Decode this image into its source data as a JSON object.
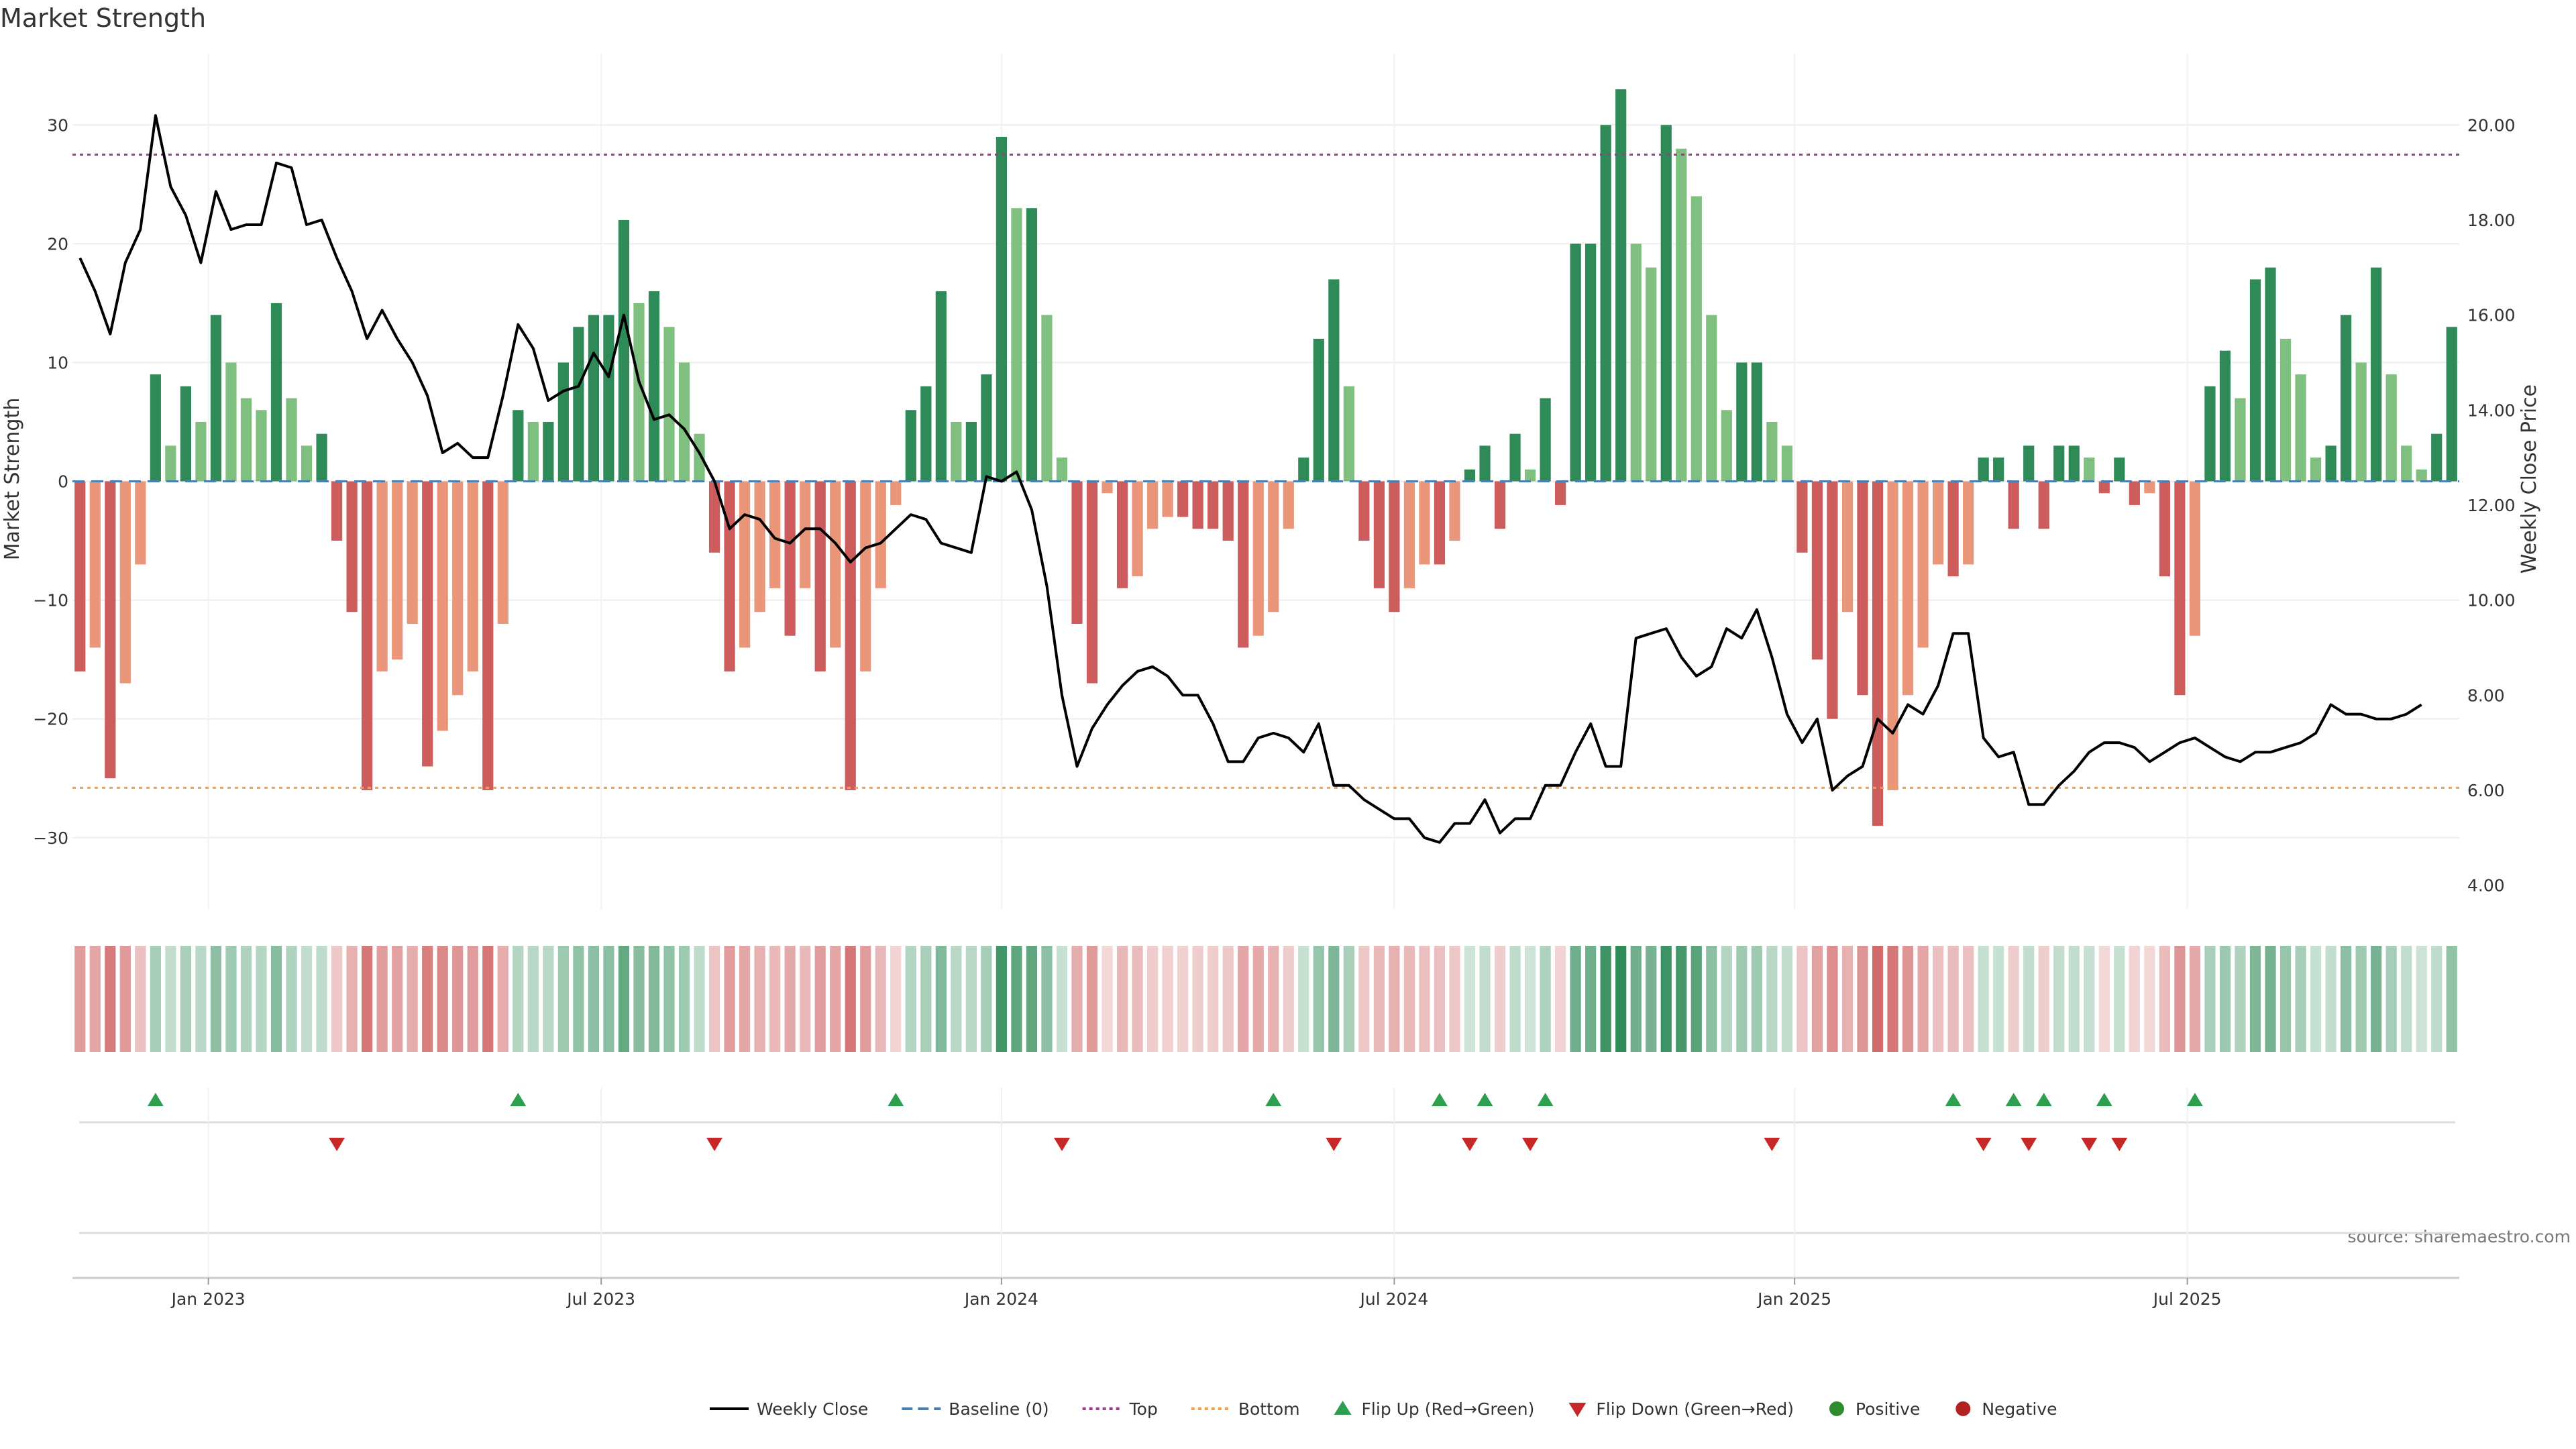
{
  "chart_data": {
    "type": "bar",
    "title": "Market Strength",
    "ylabel": "Market Strength",
    "y2label": "Weekly Close Price",
    "ylim": [
      -36,
      36
    ],
    "y2lim": [
      3.5,
      21.5
    ],
    "yticks": [
      "30",
      "20",
      "10",
      "0",
      "−10",
      "−20",
      "−30"
    ],
    "y2ticks": [
      "20.00",
      "18.00",
      "16.00",
      "14.00",
      "12.00",
      "10.00",
      "8.00",
      "6.00",
      "4.00"
    ],
    "xticks": [
      {
        "label": "Jan 2023",
        "week": 9
      },
      {
        "label": "Jul 2023",
        "week": 35
      },
      {
        "label": "Jan 2024",
        "week": 61.5
      },
      {
        "label": "Jul 2024",
        "week": 87.5
      },
      {
        "label": "Jan 2025",
        "week": 114
      },
      {
        "label": "Jul 2025",
        "week": 140
      }
    ],
    "top_level": 27.5,
    "bottom_level": -25.8,
    "strength": [
      -16,
      -14,
      -25,
      -17,
      -7,
      9,
      3,
      8,
      5,
      14,
      10,
      7,
      6,
      15,
      7,
      3,
      4,
      -5,
      -11,
      -26,
      -16,
      -15,
      -12,
      -24,
      -21,
      -18,
      -16,
      -26,
      -12,
      6,
      5,
      5,
      10,
      13,
      14,
      14,
      22,
      15,
      16,
      13,
      10,
      4,
      -6,
      -16,
      -14,
      -11,
      -9,
      -13,
      -9,
      -16,
      -14,
      -26,
      -16,
      -9,
      -2,
      6,
      8,
      16,
      5,
      5,
      9,
      29,
      23,
      23,
      14,
      2,
      -12,
      -17,
      -1,
      -9,
      -8,
      -4,
      -3,
      -3,
      -4,
      -4,
      -5,
      -14,
      -13,
      -11,
      -4,
      2,
      12,
      17,
      8,
      -5,
      -9,
      -11,
      -9,
      -7,
      -7,
      -5,
      1,
      3,
      -4,
      4,
      1,
      7,
      -2,
      20,
      20,
      30,
      33,
      20,
      18,
      30,
      28,
      24,
      14,
      6,
      10,
      10,
      5,
      3,
      -6,
      -15,
      -20,
      -11,
      -18,
      -29,
      -26,
      -18,
      -14,
      -7,
      -8,
      -7,
      2,
      2,
      -4,
      3,
      -4,
      3,
      3,
      2,
      -1,
      2,
      -2,
      -1,
      -8,
      -18,
      -13,
      8,
      11,
      7,
      17,
      18,
      12,
      9,
      2,
      3,
      14,
      10,
      18,
      9,
      3,
      1,
      4,
      13
    ],
    "price": [
      17.2,
      16.5,
      15.6,
      17.1,
      17.8,
      20.2,
      18.7,
      18.1,
      17.1,
      18.6,
      17.8,
      17.9,
      17.9,
      19.2,
      19.1,
      17.9,
      18.0,
      17.2,
      16.5,
      15.5,
      16.1,
      15.5,
      15.0,
      14.3,
      13.1,
      13.3,
      13.0,
      13.0,
      14.3,
      15.8,
      15.3,
      14.2,
      14.4,
      14.5,
      15.2,
      14.7,
      16.0,
      14.6,
      13.8,
      13.9,
      13.6,
      13.1,
      12.5,
      11.5,
      11.8,
      11.7,
      11.3,
      11.2,
      11.5,
      11.5,
      11.2,
      10.8,
      11.1,
      11.2,
      11.5,
      11.8,
      11.7,
      11.2,
      11.1,
      11.0,
      12.6,
      12.5,
      12.7,
      11.9,
      10.3,
      8.0,
      6.5,
      7.3,
      7.8,
      8.2,
      8.5,
      8.6,
      8.4,
      8.0,
      8.0,
      7.4,
      6.6,
      6.6,
      7.1,
      7.2,
      7.1,
      6.8,
      7.4,
      6.1,
      6.1,
      5.8,
      5.6,
      5.4,
      5.4,
      5.0,
      4.9,
      5.3,
      5.3,
      5.8,
      5.1,
      5.4,
      5.4,
      6.1,
      6.1,
      6.8,
      7.4,
      6.5,
      6.5,
      9.2,
      9.3,
      9.4,
      8.8,
      8.4,
      8.6,
      9.4,
      9.2,
      9.8,
      8.8,
      7.6,
      7.0,
      7.5,
      6.0,
      6.3,
      6.5,
      7.5,
      7.2,
      7.8,
      7.6,
      8.2,
      9.3,
      9.3,
      7.1,
      6.7,
      6.8,
      5.7,
      5.7,
      6.1,
      6.4,
      6.8,
      7.0,
      7.0,
      6.9,
      6.6,
      6.8,
      7.0,
      7.1,
      6.9,
      6.7,
      6.6,
      6.8,
      6.8,
      6.9,
      7.0,
      7.2,
      7.8,
      7.6,
      7.6,
      7.5,
      7.5,
      7.6,
      7.8
    ],
    "flip_up_weeks": [
      5,
      29,
      54,
      79,
      90,
      93,
      97,
      124,
      128,
      130,
      134,
      140
    ],
    "flip_down_weeks": [
      17,
      42,
      65,
      83,
      92,
      96,
      112,
      126,
      129,
      133,
      135
    ],
    "source": "source: sharemaestro.com",
    "colors": {
      "pos_strong": "#2e8b57",
      "pos_light": "#7fbf7f",
      "neg_strong": "#cd5c5c",
      "neg_light": "#e9967a",
      "price_line": "#000000",
      "baseline": "#4a7fb5",
      "top": "#9b3d8f",
      "bottom": "#f0a050",
      "flip_up": "#2e9e4f",
      "flip_down": "#c62828",
      "positive": "#2e8b2e",
      "negative": "#b22222"
    },
    "legend": [
      {
        "label": "Weekly Close",
        "kind": "line-solid",
        "color": "#000000"
      },
      {
        "label": "Baseline (0)",
        "kind": "line-dash",
        "color": "#4a7fb5"
      },
      {
        "label": "Top",
        "kind": "line-dot",
        "color": "#9b3d8f"
      },
      {
        "label": "Bottom",
        "kind": "line-dot",
        "color": "#f0a050"
      },
      {
        "label": "Flip Up (Red→Green)",
        "kind": "tri-up",
        "color": "#2e9e4f"
      },
      {
        "label": "Flip Down (Green→Red)",
        "kind": "tri-down",
        "color": "#c62828"
      },
      {
        "label": "Positive",
        "kind": "dot",
        "color": "#2e8b2e"
      },
      {
        "label": "Negative",
        "kind": "dot",
        "color": "#b22222"
      }
    ],
    "legend_position": "bottom-center"
  }
}
